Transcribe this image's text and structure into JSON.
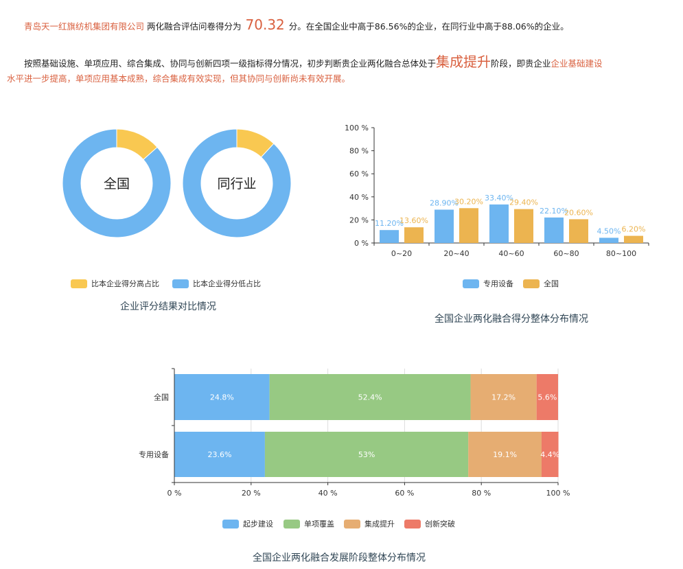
{
  "summary": {
    "company": "青岛天一红旗纺机集团有限公司",
    "text1": "两化融合评估问卷得分为",
    "score": "70.32",
    "text2": "分。在全国企业中高于86.56%的企业，在同行业中高于88.06%的企业。",
    "text3": "按照基础设施、单项应用、综合集成、协同与创新四项一级指标得分情况，初步判断贵企业两化融合总体处于",
    "stage": "集成提升",
    "text4": "阶段，即贵企业",
    "conclusion_line1": "企业基础建设",
    "conclusion_line2": "水平进一步提高，单项应用基本成熟，综合集成有效实现，但其协同与创新尚未有效开展。"
  },
  "colors": {
    "accent": "#d9603f",
    "blue": "#6db5f0",
    "yellow": "#f9c851",
    "gold": "#ecb450",
    "green": "#97c983",
    "orange": "#e6ad72",
    "red": "#ed7a68"
  },
  "chart_data": [
    {
      "type": "pie",
      "title": "企业评分结果对比情况",
      "legend": [
        "比本企业得分高占比",
        "比本企业得分低占比"
      ],
      "legend_position": "bottom",
      "donuts": [
        {
          "label": "全国",
          "values": [
            13.44,
            86.56
          ]
        },
        {
          "label": "同行业",
          "values": [
            11.94,
            88.06
          ]
        }
      ]
    },
    {
      "type": "bar",
      "title": "全国企业两化融合得分整体分布情况",
      "categories": [
        "0~20",
        "20~40",
        "40~60",
        "60~80",
        "80~100"
      ],
      "ylim": [
        0,
        100
      ],
      "yticks": [
        "0 %",
        "20 %",
        "40 %",
        "60 %",
        "80 %",
        "100 %"
      ],
      "legend_position": "bottom",
      "series": [
        {
          "name": "专用设备",
          "values": [
            11.2,
            28.9,
            33.4,
            22.1,
            4.5
          ],
          "labels": [
            "11.20%",
            "28.90%",
            "33.40%",
            "22.10%",
            "4.50%"
          ]
        },
        {
          "name": "全国",
          "values": [
            13.6,
            30.2,
            29.4,
            20.6,
            6.2
          ],
          "labels": [
            "13.60%",
            "30.20%",
            "29.40%",
            "20.60%",
            "6.20%"
          ]
        }
      ]
    },
    {
      "type": "bar",
      "orientation": "horizontal-stacked",
      "title": "全国企业两化融合发展阶段整体分布情况",
      "categories": [
        "全国",
        "专用设备"
      ],
      "xlim": [
        0,
        100
      ],
      "xticks": [
        "0 %",
        "20 %",
        "40 %",
        "60 %",
        "80 %",
        "100 %"
      ],
      "grid": true,
      "legend_position": "bottom",
      "series": [
        {
          "name": "起步建设",
          "values": [
            24.8,
            23.6
          ],
          "labels": [
            "24.8%",
            "23.6%"
          ]
        },
        {
          "name": "单项覆盖",
          "values": [
            52.4,
            53
          ],
          "labels": [
            "52.4%",
            "53%"
          ]
        },
        {
          "name": "集成提升",
          "values": [
            17.2,
            19.1
          ],
          "labels": [
            "17.2%",
            "19.1%"
          ]
        },
        {
          "name": "创新突破",
          "values": [
            5.6,
            4.4
          ],
          "labels": [
            "5.6%",
            "4.4%"
          ]
        }
      ]
    }
  ]
}
